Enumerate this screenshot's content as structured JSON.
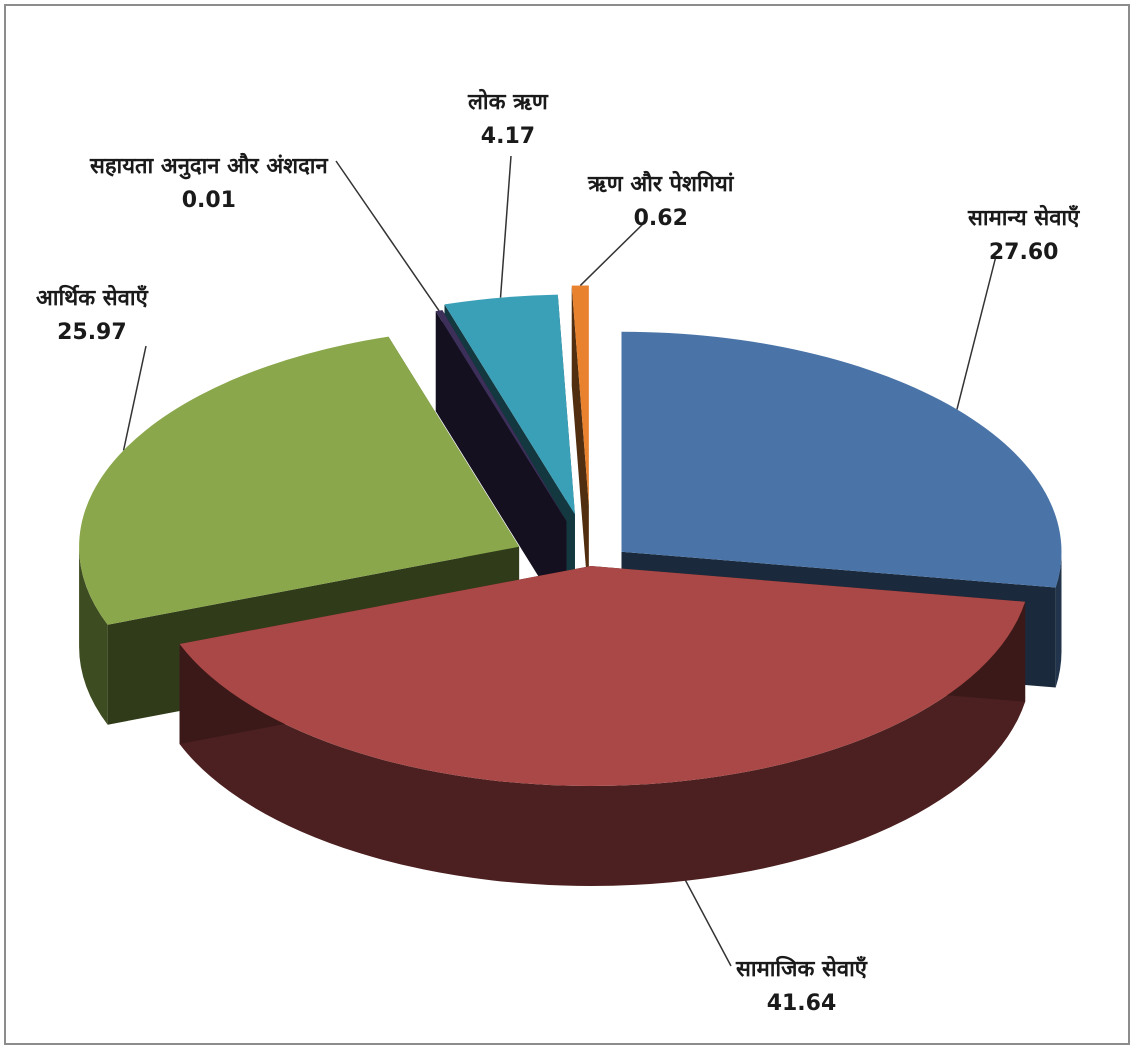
{
  "chart_data": {
    "type": "pie",
    "title": "",
    "slices": [
      {
        "label": "सामान्य सेवाएँ",
        "value": 27.6,
        "value_text": "27.60",
        "color": "#4a74a8"
      },
      {
        "label": "सामाजिक सेवाएँ",
        "value": 41.64,
        "value_text": "41.64",
        "color": "#a94846"
      },
      {
        "label": "आर्थिक सेवाएँ",
        "value": 25.97,
        "value_text": "25.97",
        "color": "#8aa84b"
      },
      {
        "label": "सहायता अनुदान और अंशदान",
        "value": 0.01,
        "value_text": "0.01",
        "color": "#3c2f5a"
      },
      {
        "label": "लोक ऋण",
        "value": 4.17,
        "value_text": "4.17",
        "color": "#3aa0b8"
      },
      {
        "label": "ऋण और पेशगियां",
        "value": 0.62,
        "value_text": "0.62",
        "color": "#e8822e"
      }
    ],
    "legend": "none",
    "style": "3d-exploded"
  }
}
